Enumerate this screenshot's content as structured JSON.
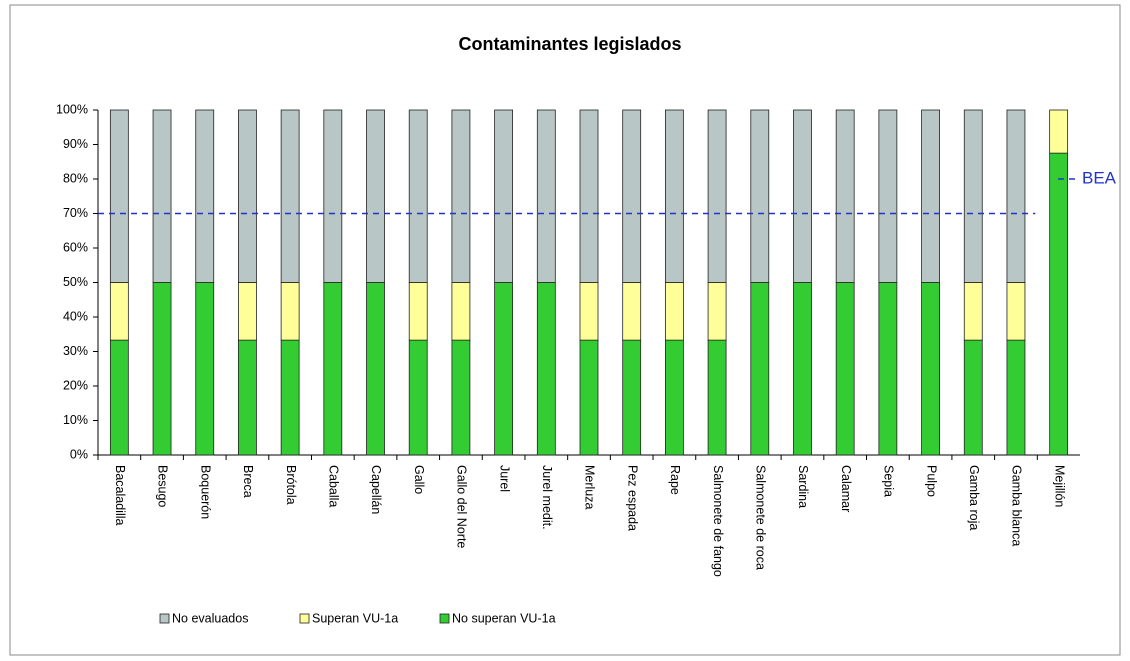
{
  "chart_data": {
    "type": "stacked_bar",
    "title": "Contaminantes legislados",
    "categories": [
      "Bacaladilla",
      "Besugo",
      "Boquerón",
      "Breca",
      "Brótola",
      "Caballa",
      "Capellán",
      "Gallo",
      "Gallo del Norte",
      "Jurel",
      "Jurel medit.",
      "Merluza",
      "Pez espada",
      "Rape",
      "Salmonete de fango",
      "Salmonete de roca",
      "Sardina",
      "Calamar",
      "Sepia",
      "Pulpo",
      "Gamba roja",
      "Gamba blanca",
      "Mejillón"
    ],
    "series": [
      {
        "name": "No evaluados",
        "color": "#b8c6c6",
        "values": [
          50,
          50,
          50,
          50,
          50,
          50,
          50,
          50,
          50,
          50,
          50,
          50,
          50,
          50,
          50,
          50,
          50,
          50,
          50,
          50,
          50,
          50,
          0
        ]
      },
      {
        "name": "Superan VU-1a",
        "color": "#ffff99",
        "values": [
          16.7,
          0,
          0,
          16.7,
          16.7,
          0,
          0,
          16.7,
          16.7,
          0,
          0,
          16.7,
          16.7,
          16.7,
          16.7,
          0,
          0,
          0,
          0,
          0,
          16.7,
          16.7,
          12.5
        ]
      },
      {
        "name": "No superan VU-1a",
        "color": "#33cc33",
        "values": [
          33.3,
          50,
          50,
          33.3,
          33.3,
          50,
          50,
          33.3,
          33.3,
          50,
          50,
          33.3,
          33.3,
          33.3,
          33.3,
          50,
          50,
          50,
          50,
          50,
          33.3,
          33.3,
          87.5
        ]
      }
    ],
    "ylim": [
      0,
      100
    ],
    "yticks": [
      {
        "value": 0,
        "label": "0%"
      },
      {
        "value": 10,
        "label": "10%"
      },
      {
        "value": 20,
        "label": "20%"
      },
      {
        "value": 30,
        "label": "30%"
      },
      {
        "value": 40,
        "label": "40%"
      },
      {
        "value": 50,
        "label": "50%"
      },
      {
        "value": 60,
        "label": "60%"
      },
      {
        "value": 70,
        "label": "70%"
      },
      {
        "value": 80,
        "label": "80%"
      },
      {
        "value": 90,
        "label": "90%"
      },
      {
        "value": 100,
        "label": "100%"
      }
    ],
    "threshold": 70,
    "annotation": {
      "text": "BEA",
      "value": 80,
      "color": "#2233cc"
    },
    "legend": "bottom"
  }
}
